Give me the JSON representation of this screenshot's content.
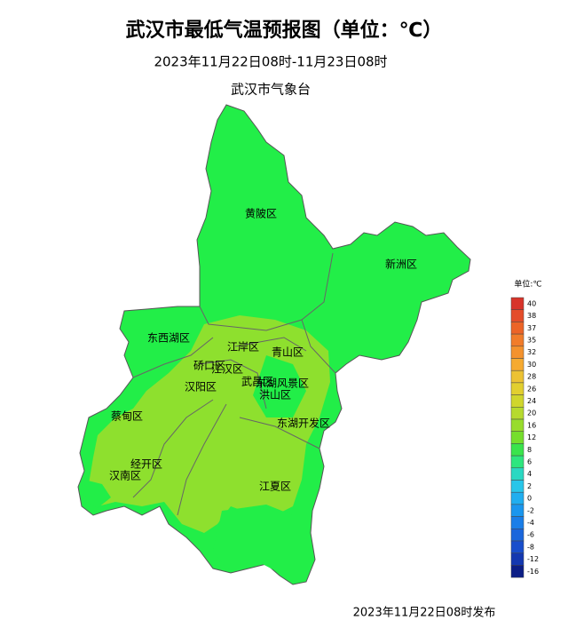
{
  "header": {
    "title": "武汉市最低气温预报图（单位：℃）",
    "subtitle": "2023年11月22日08时-11月23日08时",
    "issuer": "武汉市气象台"
  },
  "districts": [
    "黄陂区",
    "新洲区",
    "东西湖区",
    "江岸区",
    "青山区",
    "硚口区",
    "江汉区",
    "汉阳区",
    "武昌区",
    "东湖风景区",
    "洪山区",
    "蔡甸区",
    "东湖开发区",
    "经开区",
    "汉南区",
    "江夏区"
  ],
  "legend": {
    "title": "单位:℃",
    "items": [
      {
        "value": 40,
        "color": "#d8342a"
      },
      {
        "value": 38,
        "color": "#e44d2a"
      },
      {
        "value": 37,
        "color": "#ec6427"
      },
      {
        "value": 35,
        "color": "#f17c2a"
      },
      {
        "value": 32,
        "color": "#f4922d"
      },
      {
        "value": 30,
        "color": "#f6aa30"
      },
      {
        "value": 28,
        "color": "#ecc233"
      },
      {
        "value": 26,
        "color": "#e2cf2f"
      },
      {
        "value": 24,
        "color": "#d0d62c"
      },
      {
        "value": 20,
        "color": "#b6da2e"
      },
      {
        "value": 16,
        "color": "#98dc2c"
      },
      {
        "value": 12,
        "color": "#76de2c"
      },
      {
        "value": 8,
        "color": "#3ae44c"
      },
      {
        "value": 6,
        "color": "#2ee67e"
      },
      {
        "value": 4,
        "color": "#2ad8c2"
      },
      {
        "value": 2,
        "color": "#28c6ea"
      },
      {
        "value": 0,
        "color": "#20aef0"
      },
      {
        "value": -2,
        "color": "#1a96ee"
      },
      {
        "value": -4,
        "color": "#1a7ee8"
      },
      {
        "value": -6,
        "color": "#1a66dc"
      },
      {
        "value": -8,
        "color": "#184ecc"
      },
      {
        "value": -12,
        "color": "#1438b0"
      },
      {
        "value": -16,
        "color": "#0c1e86"
      }
    ]
  },
  "footer": "2023年11月22日08时发布"
}
